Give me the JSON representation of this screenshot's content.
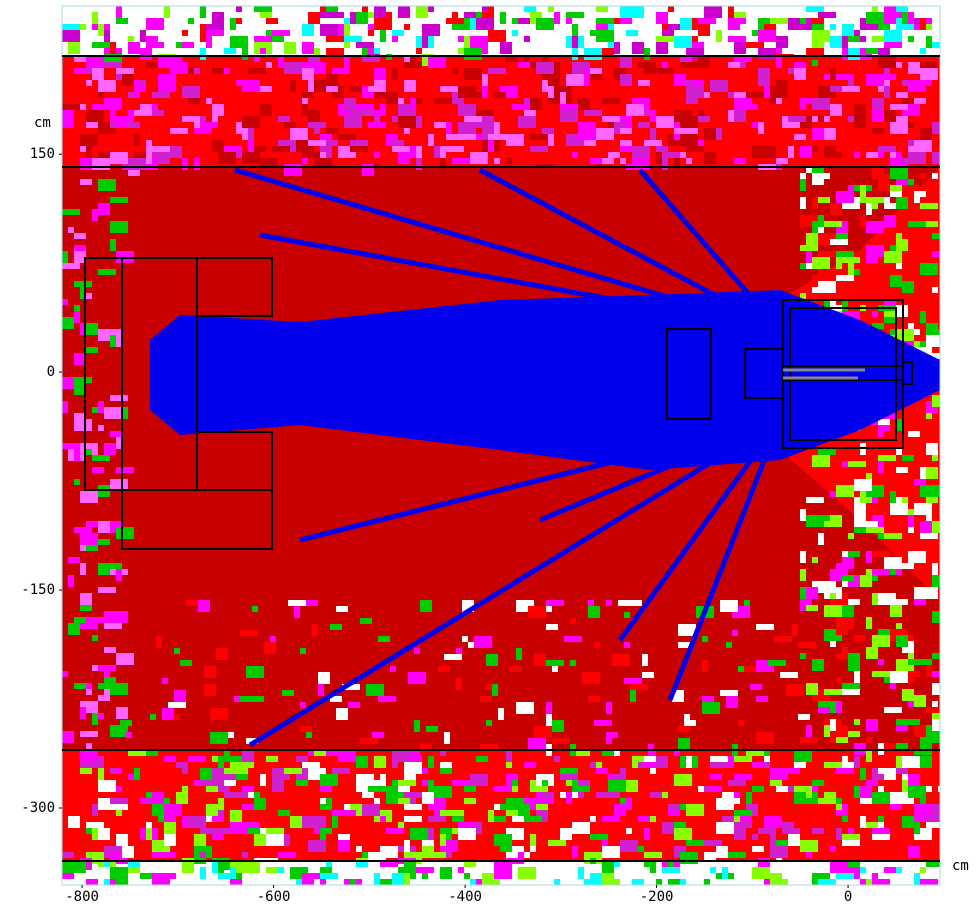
{
  "chart_data": {
    "type": "map2d",
    "xlabel": "cm",
    "ylabel": "cm",
    "xlim": [
      -821,
      96
    ],
    "ylim": [
      -353,
      252
    ],
    "xticks": [
      -800,
      -600,
      -400,
      -200,
      0
    ],
    "yticks": [
      150,
      0,
      -150,
      -300
    ]
  }
}
